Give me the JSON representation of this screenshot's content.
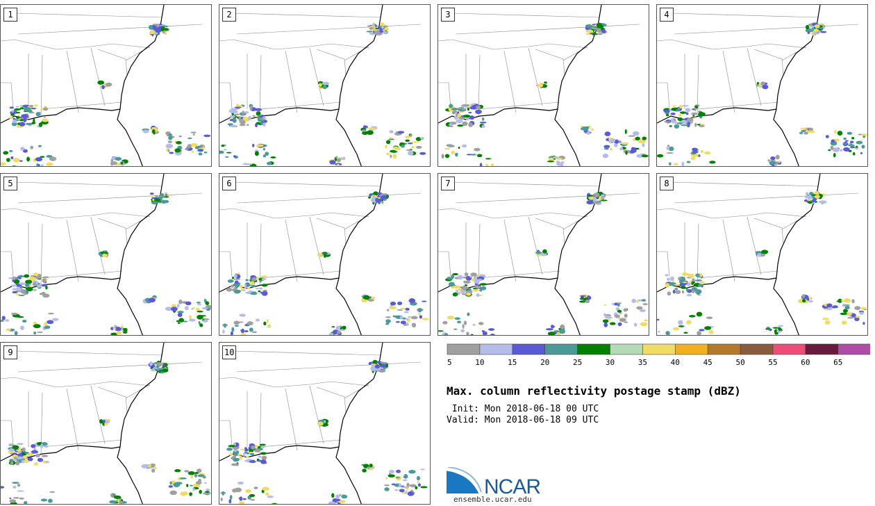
{
  "panels": [
    {
      "label": "1"
    },
    {
      "label": "2"
    },
    {
      "label": "3"
    },
    {
      "label": "4"
    },
    {
      "label": "5"
    },
    {
      "label": "6"
    },
    {
      "label": "7"
    },
    {
      "label": "8"
    },
    {
      "label": "9"
    },
    {
      "label": "10"
    }
  ],
  "legend": {
    "colors": [
      "#a0a0a0",
      "#b4bcec",
      "#5a5ad6",
      "#4a9a9a",
      "#008200",
      "#b4dcb4",
      "#f0dc64",
      "#f0b020",
      "#b47a2a",
      "#8c5a3c",
      "#f04c78",
      "#6a1a3c",
      "#b04ca8"
    ],
    "ticks": [
      "5",
      "10",
      "15",
      "20",
      "25",
      "30",
      "35",
      "40",
      "45",
      "50",
      "55",
      "60",
      "65"
    ]
  },
  "title": "Max. column reflectivity postage stamp (dBZ)",
  "init_text": " Init: Mon 2018-06-18 00 UTC",
  "valid_text": "Valid: Mon 2018-06-18 09 UTC",
  "logo": {
    "text": "NCAR",
    "url": "ensemble.ucar.edu"
  }
}
